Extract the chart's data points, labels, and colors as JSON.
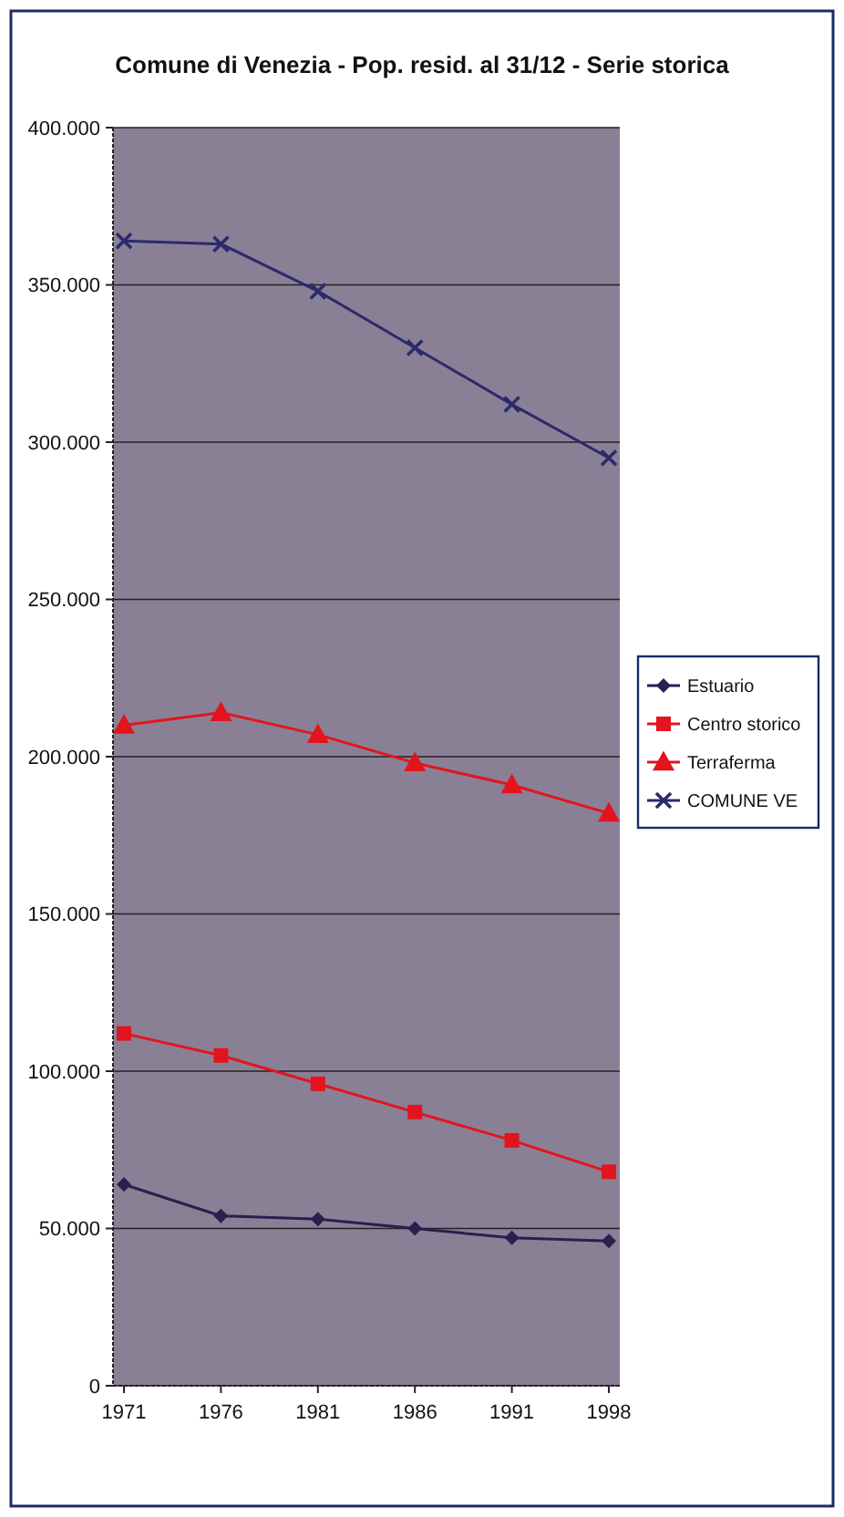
{
  "chart_data": {
    "type": "line",
    "title": "Comune di Venezia - Pop. resid. al 31/12 - Serie storica",
    "categories": [
      "1971",
      "1976",
      "1981",
      "1986",
      "1991",
      "1998"
    ],
    "series": [
      {
        "name": "Estuario",
        "color": "#2a1f4e",
        "marker": "diamond",
        "values": [
          64000,
          54000,
          53000,
          50000,
          47000,
          46000
        ]
      },
      {
        "name": "Centro storico",
        "color": "#e3141e",
        "marker": "square",
        "values": [
          112000,
          105000,
          96000,
          87000,
          78000,
          68000
        ]
      },
      {
        "name": "Terraferma",
        "color": "#e3141e",
        "marker": "triangle",
        "values": [
          210000,
          214000,
          207000,
          198000,
          191000,
          182000
        ]
      },
      {
        "name": "COMUNE VE",
        "color": "#2b2a6b",
        "marker": "cross",
        "values": [
          364000,
          363000,
          348000,
          330000,
          312000,
          295000
        ]
      }
    ],
    "ylim": [
      0,
      400000
    ],
    "yticks": [
      0,
      {
        "value": 50000,
        "label": "50.000"
      },
      {
        "value": 100000,
        "label": "100.000"
      },
      {
        "value": 150000,
        "label": "150.000"
      },
      {
        "value": 200000,
        "label": "200.000"
      },
      {
        "value": 250000,
        "label": "250.000"
      },
      {
        "value": 300000,
        "label": "300.000"
      },
      {
        "value": 350000,
        "label": "350.000"
      },
      {
        "value": 400000,
        "label": "400.000"
      }
    ],
    "grid": "y",
    "legend": "right"
  }
}
